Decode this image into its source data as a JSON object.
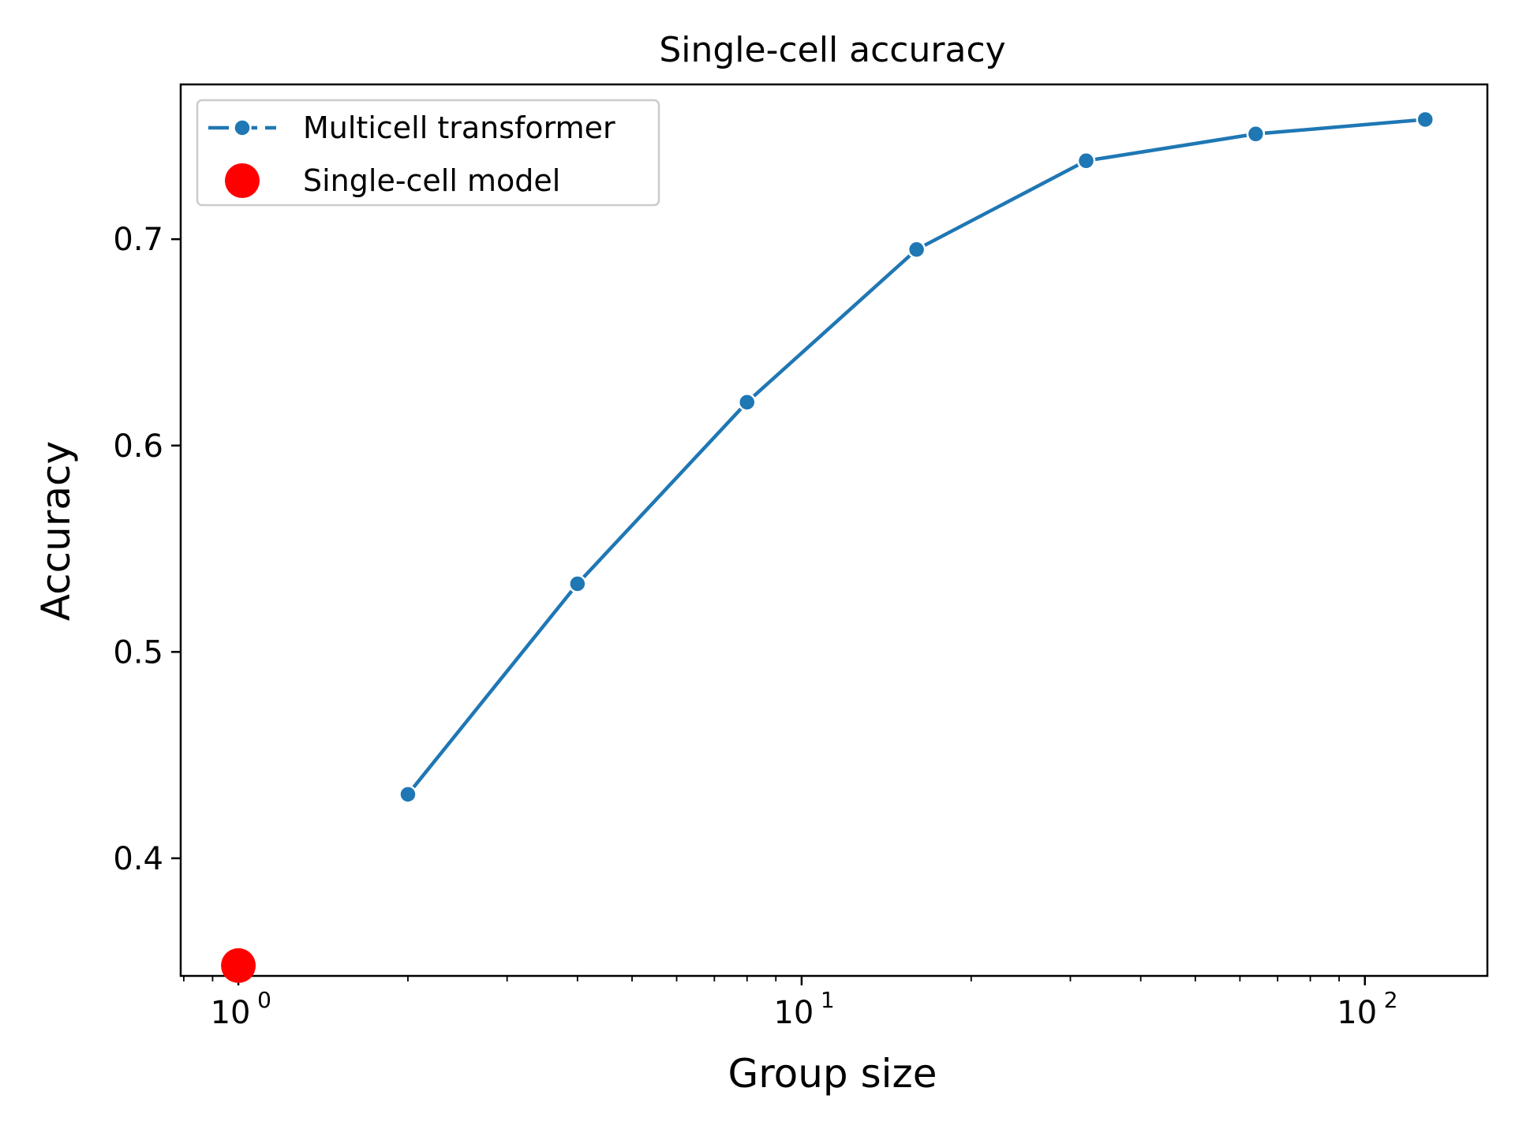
{
  "chart_data": {
    "type": "line",
    "title": "Single-cell accuracy",
    "xlabel": "Group size",
    "ylabel": "Accuracy",
    "xscale": "log",
    "xlim": [
      0.79,
      165
    ],
    "ylim": [
      0.343,
      0.775
    ],
    "x_ticks": [
      {
        "value": 1,
        "base": "10",
        "exp": "0"
      },
      {
        "value": 10,
        "base": "10",
        "exp": "1"
      },
      {
        "value": 100,
        "base": "10",
        "exp": "2"
      }
    ],
    "y_ticks": [
      {
        "value": 0.4,
        "label": "0.4"
      },
      {
        "value": 0.5,
        "label": "0.5"
      },
      {
        "value": 0.6,
        "label": "0.6"
      },
      {
        "value": 0.7,
        "label": "0.7"
      }
    ],
    "grid": false,
    "legend_position": "top-left",
    "series": [
      {
        "name": "Multicell transformer",
        "kind": "line-with-markers",
        "color": "#1f77b4",
        "x": [
          2,
          4,
          8,
          16,
          32,
          64,
          128
        ],
        "y": [
          0.431,
          0.533,
          0.621,
          0.695,
          0.738,
          0.751,
          0.758
        ]
      },
      {
        "name": "Single-cell model",
        "kind": "scatter",
        "color": "#ff0000",
        "x": [
          1
        ],
        "y": [
          0.348
        ]
      }
    ]
  }
}
